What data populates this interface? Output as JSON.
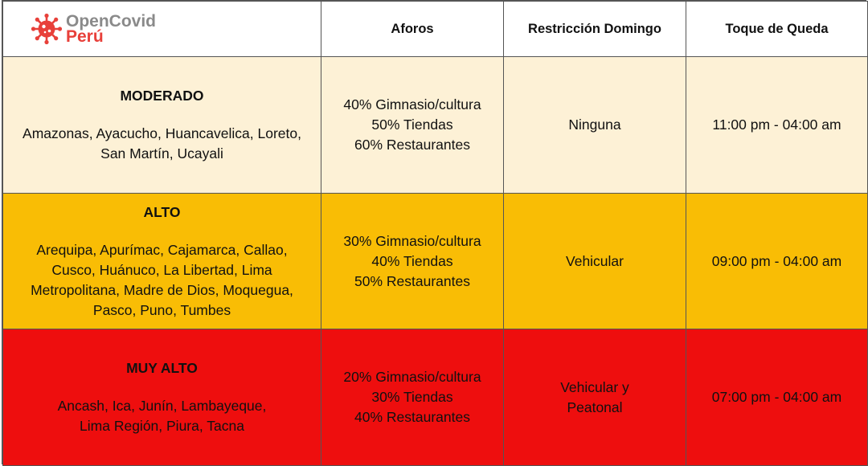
{
  "logo": {
    "line1": "OpenCovid",
    "line2": "Perú",
    "icon": "virus-icon",
    "accent": "#e8403a"
  },
  "headers": {
    "aforos": "Aforos",
    "restriccion": "Restricción Domingo",
    "toque": "Toque de Queda"
  },
  "rows": [
    {
      "level": "MODERADO",
      "regions": [
        "Amazonas, Ayacucho, Huancavelica, Loreto,",
        "San Martín, Ucayali"
      ],
      "aforos": [
        "40% Gimnasio/cultura",
        "50% Tiendas",
        "60% Restaurantes"
      ],
      "restriccion": [
        "Ninguna"
      ],
      "toque": "11:00 pm - 04:00 am",
      "color": "#fdf1d6"
    },
    {
      "level": "ALTO",
      "regions": [
        "Arequipa, Apurímac, Cajamarca, Callao,",
        "Cusco, Huánuco, La Libertad, Lima",
        "Metropolitana, Madre de Dios, Moquegua,",
        "Pasco, Puno, Tumbes"
      ],
      "aforos": [
        "30% Gimnasio/cultura",
        "40% Tiendas",
        "50% Restaurantes"
      ],
      "restriccion": [
        "Vehicular"
      ],
      "toque": "09:00 pm - 04:00 am",
      "color": "#f9bd05"
    },
    {
      "level": "MUY ALTO",
      "regions": [
        "Ancash, Ica, Junín, Lambayeque,",
        "Lima Región, Piura, Tacna"
      ],
      "aforos": [
        "20% Gimnasio/cultura",
        "30% Tiendas",
        "40% Restaurantes"
      ],
      "restriccion": [
        "Vehicular y",
        "Peatonal"
      ],
      "toque": "07:00 pm - 04:00 am",
      "color": "#ee0e0e"
    }
  ]
}
